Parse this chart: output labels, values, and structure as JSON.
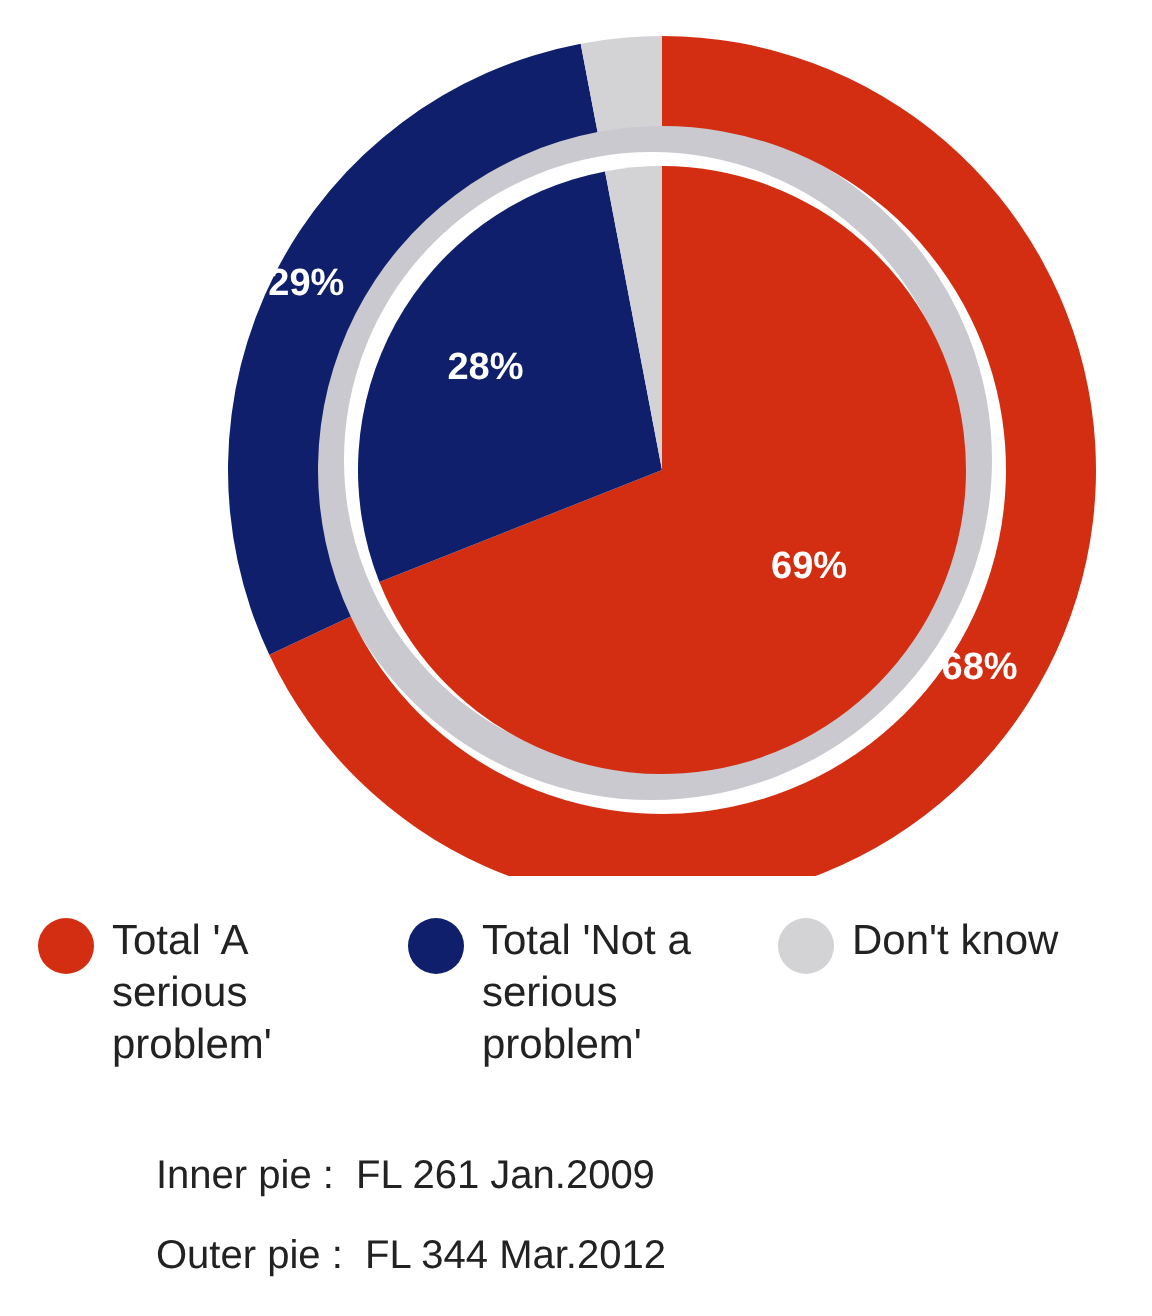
{
  "chart_data": {
    "type": "pie",
    "categories": [
      "Total 'A serious problem'",
      "Total 'Not a serious problem'",
      "Don't know"
    ],
    "colors": [
      "#d42e12",
      "#0f1f6b",
      "#d3d3d6"
    ],
    "series": [
      {
        "values": [
          69,
          28,
          3
        ],
        "value_labels": [
          "69%",
          "28%",
          null
        ]
      },
      {
        "values": [
          68,
          29,
          3
        ],
        "value_labels": [
          "68%",
          "29%",
          null
        ]
      }
    ],
    "legend": "bottom",
    "annotations": [
      "Inner pie :  FL 261 Jan.2009",
      "Outer pie :  FL 344 Mar.2012"
    ]
  }
}
